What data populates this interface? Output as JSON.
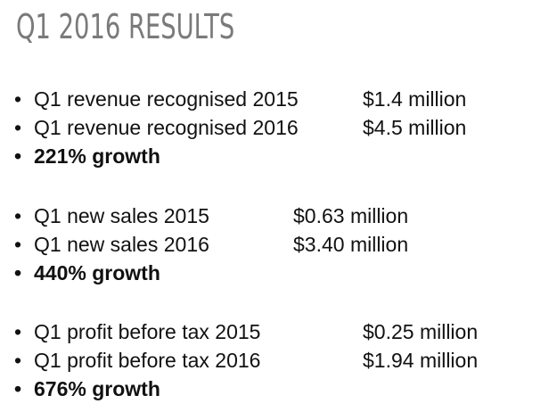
{
  "slide": {
    "title": "Q1  2016 RESULTS",
    "bullet": "•",
    "groups": [
      {
        "items": [
          {
            "label": "Q1 revenue recognised 2015",
            "value": "$1.4 million"
          },
          {
            "label": "Q1 revenue recognised 2016",
            "value": "$4.5 million"
          }
        ],
        "growth": "221% growth"
      },
      {
        "items": [
          {
            "label": "Q1 new sales 2015",
            "value": "$0.63 million"
          },
          {
            "label": "Q1 new sales 2016",
            "value": "$3.40 million"
          }
        ],
        "growth": "440% growth"
      },
      {
        "items": [
          {
            "label": "Q1 profit before tax 2015",
            "value": "$0.25 million"
          },
          {
            "label": "Q1 profit before tax 2016",
            "value": "$1.94 million"
          }
        ],
        "growth": "676% growth"
      }
    ]
  },
  "colors": {
    "title": "#7a7a7a",
    "text": "#111111",
    "background": "#ffffff"
  }
}
